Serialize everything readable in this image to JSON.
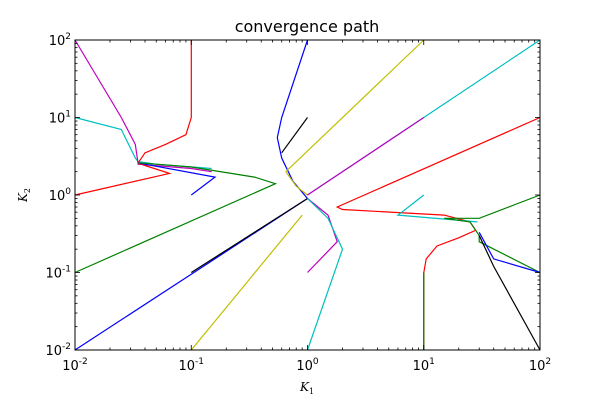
{
  "chart_data": {
    "type": "line",
    "title": "convergence path",
    "xlabel": "K",
    "xlabel_sub": "1",
    "ylabel": "K",
    "ylabel_sub": "2",
    "xscale": "log",
    "yscale": "log",
    "xlim": [
      0.01,
      100
    ],
    "ylim": [
      0.01,
      100
    ],
    "grid": false,
    "x_ticks": [
      {
        "base": "10",
        "exp": "-2",
        "value": 0.01
      },
      {
        "base": "10",
        "exp": "-1",
        "value": 0.1
      },
      {
        "base": "10",
        "exp": "0",
        "value": 1
      },
      {
        "base": "10",
        "exp": "1",
        "value": 10
      },
      {
        "base": "10",
        "exp": "2",
        "value": 100
      }
    ],
    "y_ticks": [
      {
        "base": "10",
        "exp": "-2",
        "value": 0.01
      },
      {
        "base": "10",
        "exp": "-1",
        "value": 0.1
      },
      {
        "base": "10",
        "exp": "0",
        "value": 1
      },
      {
        "base": "10",
        "exp": "1",
        "value": 10
      },
      {
        "base": "10",
        "exp": "2",
        "value": 100
      }
    ],
    "series": [
      {
        "color": "#00bfbf",
        "points": [
          [
            0.01,
            10
          ],
          [
            0.025,
            7
          ],
          [
            0.033,
            3
          ],
          [
            0.035,
            2.7
          ],
          [
            0.05,
            2.5
          ],
          [
            0.15,
            2.2
          ]
        ]
      },
      {
        "color": "#bf00bf",
        "points": [
          [
            0.01,
            100
          ],
          [
            0.025,
            10
          ],
          [
            0.033,
            4.5
          ],
          [
            0.035,
            2.5
          ],
          [
            0.1,
            2.2
          ],
          [
            0.15,
            2.0
          ]
        ]
      },
      {
        "color": "#ff0000",
        "points": [
          [
            0.1,
            100
          ],
          [
            0.1,
            10
          ],
          [
            0.09,
            6
          ],
          [
            0.06,
            4.5
          ],
          [
            0.04,
            3.5
          ],
          [
            0.035,
            2.6
          ],
          [
            0.04,
            2.4
          ],
          [
            0.065,
            1.9
          ],
          [
            0.01,
            1.0
          ]
        ]
      },
      {
        "color": "#0000ff",
        "points": [
          [
            0.1,
            1.0
          ],
          [
            0.16,
            1.7
          ],
          [
            0.04,
            2.5
          ],
          [
            0.035,
            2.6
          ]
        ]
      },
      {
        "color": "#008000",
        "points": [
          [
            0.035,
            2.6
          ],
          [
            0.1,
            2.3
          ],
          [
            0.35,
            1.7
          ],
          [
            0.53,
            1.4
          ],
          [
            0.01,
            0.1
          ]
        ]
      },
      {
        "color": "#0000ff",
        "points": [
          [
            1.0,
            100
          ],
          [
            0.6,
            10
          ],
          [
            0.55,
            5.5
          ],
          [
            0.6,
            3
          ],
          [
            0.75,
            1.5
          ],
          [
            1.0,
            0.9
          ],
          [
            0.01,
            0.01
          ]
        ]
      },
      {
        "color": "#000000",
        "points": [
          [
            0.6,
            3.5
          ],
          [
            1.0,
            10
          ]
        ]
      },
      {
        "color": "#000000",
        "points": [
          [
            1.0,
            0.9
          ],
          [
            0.1,
            0.1
          ]
        ]
      },
      {
        "color": "#bfbf00",
        "points": [
          [
            10,
            100
          ],
          [
            0.65,
            2
          ]
        ]
      },
      {
        "color": "#bfbf00",
        "points": [
          [
            0.65,
            2
          ],
          [
            0.8,
            1.3
          ],
          [
            1.0,
            1.0
          ]
        ]
      },
      {
        "color": "#bfbf00",
        "points": [
          [
            0.9,
            0.55
          ],
          [
            0.1,
            0.01
          ]
        ]
      },
      {
        "color": "#00bfbf",
        "points": [
          [
            100,
            100
          ],
          [
            1.0,
            1.0
          ]
        ]
      },
      {
        "color": "#bf00bf",
        "points": [
          [
            10,
            10
          ],
          [
            1.0,
            1.0
          ]
        ]
      },
      {
        "color": "#bf00bf",
        "points": [
          [
            1.0,
            0.9
          ],
          [
            1.5,
            0.55
          ],
          [
            1.8,
            0.25
          ],
          [
            1.0,
            0.1
          ]
        ]
      },
      {
        "color": "#00bfbf",
        "points": [
          [
            1.0,
            0.9
          ],
          [
            1.5,
            0.5
          ],
          [
            2.0,
            0.2
          ],
          [
            1.0,
            0.01
          ]
        ]
      },
      {
        "color": "#ff0000",
        "points": [
          [
            100,
            10
          ],
          [
            1.8,
            0.7
          ],
          [
            2.0,
            0.65
          ],
          [
            15,
            0.55
          ],
          [
            25,
            0.45
          ],
          [
            28,
            0.35
          ],
          [
            20,
            0.28
          ],
          [
            13,
            0.22
          ],
          [
            10.5,
            0.15
          ],
          [
            10,
            0.1
          ],
          [
            10,
            0.01
          ]
        ]
      },
      {
        "color": "#00bfbf",
        "points": [
          [
            10,
            1.0
          ],
          [
            6,
            0.55
          ],
          [
            29,
            0.45
          ]
        ]
      },
      {
        "color": "#008000",
        "points": [
          [
            100,
            1.0
          ],
          [
            30,
            0.5
          ],
          [
            15,
            0.5
          ],
          [
            25,
            0.45
          ],
          [
            30,
            0.3
          ],
          [
            30,
            0.25
          ],
          [
            100,
            0.1
          ]
        ]
      },
      {
        "color": "#008000",
        "points": [
          [
            10,
            0.1
          ],
          [
            10,
            0.01
          ]
        ]
      },
      {
        "color": "#0000ff",
        "points": [
          [
            30,
            0.33
          ],
          [
            40,
            0.15
          ],
          [
            100,
            0.1
          ]
        ]
      },
      {
        "color": "#000000",
        "points": [
          [
            30,
            0.3
          ],
          [
            40,
            0.12
          ],
          [
            100,
            0.01
          ]
        ]
      }
    ]
  }
}
